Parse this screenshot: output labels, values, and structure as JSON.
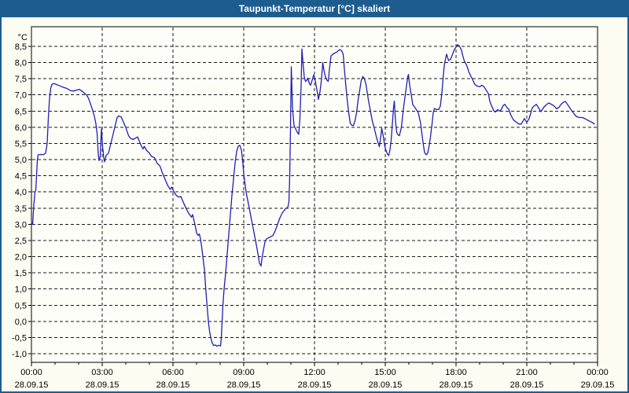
{
  "window": {
    "title": "Taupunkt-Temperatur [°C] skaliert"
  },
  "colors": {
    "titlebar_background": "#1d5c8f",
    "titlebar_text": "#ffffff",
    "window_frame": "#1d5c8f",
    "page_background": "#fcfcf2",
    "plot_background": "#fefef8",
    "grid": "#1a1a1a",
    "axis": "#000000",
    "series_line": "#1f1fb4"
  },
  "chart_data": {
    "type": "line",
    "title": "Taupunkt-Temperatur [°C] skaliert",
    "grid": "dashed",
    "legend": "none",
    "y_axis": {
      "unit": "°C",
      "max": 8.5,
      "min": -1.0,
      "step": 0.5,
      "tick_labels": [
        "8,5",
        "8,0",
        "7,5",
        "7,0",
        "6,5",
        "6,0",
        "5,5",
        "5,0",
        "4,5",
        "4,0",
        "3,5",
        "3,0",
        "2,5",
        "2,0",
        "1,5",
        "1,0",
        "0,5",
        "0,0",
        "-0,5",
        "-1,0"
      ]
    },
    "x_axis": {
      "range_hours": 24,
      "major_tick_interval_hours": 3,
      "minor_tick_interval_hours": 1,
      "ticks": [
        {
          "time": "00:00",
          "date": "28.09.15"
        },
        {
          "time": "03:00",
          "date": "28.09.15"
        },
        {
          "time": "06:00",
          "date": "28.09.15"
        },
        {
          "time": "09:00",
          "date": "28.09.15"
        },
        {
          "time": "12:00",
          "date": "28.09.15"
        },
        {
          "time": "15:00",
          "date": "28.09.15"
        },
        {
          "time": "18:00",
          "date": "28.09.15"
        },
        {
          "time": "21:00",
          "date": "28.09.15"
        },
        {
          "time": "00:00",
          "date": "29.09.15"
        }
      ]
    },
    "series": [
      {
        "name": "Taupunkt-Temperatur",
        "color": "#1f1fb4",
        "x_unit": "minutes_since_00:00",
        "y_unit": "°C",
        "points": [
          [
            0,
            3.05
          ],
          [
            3,
            3.0
          ],
          [
            6,
            3.6
          ],
          [
            9,
            4.0
          ],
          [
            11,
            4.05
          ],
          [
            13,
            4.5
          ],
          [
            15,
            5.0
          ],
          [
            17,
            5.15
          ],
          [
            24,
            5.16
          ],
          [
            30,
            5.15
          ],
          [
            36,
            5.2
          ],
          [
            40,
            5.5
          ],
          [
            43,
            6.3
          ],
          [
            46,
            6.9
          ],
          [
            49,
            7.2
          ],
          [
            52,
            7.33
          ],
          [
            58,
            7.35
          ],
          [
            64,
            7.32
          ],
          [
            72,
            7.28
          ],
          [
            80,
            7.24
          ],
          [
            90,
            7.2
          ],
          [
            100,
            7.13
          ],
          [
            108,
            7.12
          ],
          [
            115,
            7.15
          ],
          [
            122,
            7.17
          ],
          [
            128,
            7.12
          ],
          [
            133,
            7.07
          ],
          [
            140,
            7.0
          ],
          [
            145,
            6.9
          ],
          [
            150,
            6.73
          ],
          [
            155,
            6.55
          ],
          [
            160,
            6.34
          ],
          [
            164,
            6.1
          ],
          [
            167,
            5.8
          ],
          [
            170,
            5.16
          ],
          [
            172,
            4.97
          ],
          [
            175,
            5.1
          ],
          [
            178,
            5.95
          ],
          [
            181,
            5.4
          ],
          [
            184,
            5.05
          ],
          [
            186,
            4.93
          ],
          [
            190,
            5.13
          ],
          [
            196,
            5.2
          ],
          [
            202,
            5.5
          ],
          [
            208,
            5.8
          ],
          [
            214,
            6.1
          ],
          [
            218,
            6.3
          ],
          [
            222,
            6.35
          ],
          [
            228,
            6.32
          ],
          [
            233,
            6.19
          ],
          [
            240,
            5.99
          ],
          [
            247,
            5.74
          ],
          [
            252,
            5.66
          ],
          [
            258,
            5.62
          ],
          [
            264,
            5.66
          ],
          [
            270,
            5.7
          ],
          [
            274,
            5.58
          ],
          [
            280,
            5.41
          ],
          [
            284,
            5.33
          ],
          [
            287,
            5.41
          ],
          [
            293,
            5.28
          ],
          [
            300,
            5.2
          ],
          [
            305,
            5.1
          ],
          [
            313,
            5.06
          ],
          [
            320,
            4.88
          ],
          [
            327,
            4.8
          ],
          [
            333,
            4.59
          ],
          [
            340,
            4.39
          ],
          [
            347,
            4.19
          ],
          [
            353,
            4.08
          ],
          [
            357,
            4.15
          ],
          [
            363,
            3.99
          ],
          [
            368,
            3.9
          ],
          [
            374,
            3.84
          ],
          [
            380,
            3.86
          ],
          [
            387,
            3.66
          ],
          [
            393,
            3.5
          ],
          [
            400,
            3.34
          ],
          [
            407,
            3.22
          ],
          [
            410,
            3.3
          ],
          [
            413,
            3.14
          ],
          [
            417,
            2.93
          ],
          [
            420,
            2.73
          ],
          [
            424,
            2.66
          ],
          [
            427,
            2.7
          ],
          [
            430,
            2.55
          ],
          [
            433,
            2.3
          ],
          [
            436,
            2.0
          ],
          [
            440,
            1.6
          ],
          [
            444,
            0.9
          ],
          [
            447,
            0.45
          ],
          [
            450,
            0.0
          ],
          [
            453,
            -0.3
          ],
          [
            456,
            -0.5
          ],
          [
            460,
            -0.68
          ],
          [
            464,
            -0.75
          ],
          [
            468,
            -0.73
          ],
          [
            472,
            -0.77
          ],
          [
            476,
            -0.74
          ],
          [
            481,
            -0.76
          ],
          [
            483,
            -0.5
          ],
          [
            485,
            0.0
          ],
          [
            487,
            0.5
          ],
          [
            490,
            1.0
          ],
          [
            494,
            1.5
          ],
          [
            498,
            2.1
          ],
          [
            502,
            2.7
          ],
          [
            506,
            3.3
          ],
          [
            510,
            3.9
          ],
          [
            514,
            4.4
          ],
          [
            518,
            4.9
          ],
          [
            522,
            5.25
          ],
          [
            526,
            5.42
          ],
          [
            530,
            5.44
          ],
          [
            534,
            5.3
          ],
          [
            537,
            5.0
          ],
          [
            540,
            4.55
          ],
          [
            546,
            4.0
          ],
          [
            554,
            3.5
          ],
          [
            562,
            3.0
          ],
          [
            570,
            2.5
          ],
          [
            576,
            2.1
          ],
          [
            580,
            1.8
          ],
          [
            584,
            1.71
          ],
          [
            587,
            2.0
          ],
          [
            590,
            2.2
          ],
          [
            594,
            2.45
          ],
          [
            598,
            2.55
          ],
          [
            606,
            2.6
          ],
          [
            614,
            2.65
          ],
          [
            620,
            2.8
          ],
          [
            626,
            3.0
          ],
          [
            632,
            3.2
          ],
          [
            638,
            3.35
          ],
          [
            646,
            3.48
          ],
          [
            652,
            3.52
          ],
          [
            655,
            3.7
          ],
          [
            657,
            4.5
          ],
          [
            659,
            6.0
          ],
          [
            661,
            7.87
          ],
          [
            664,
            6.6
          ],
          [
            668,
            6.05
          ],
          [
            672,
            5.95
          ],
          [
            676,
            5.85
          ],
          [
            680,
            5.78
          ],
          [
            683,
            6.3
          ],
          [
            686,
            7.3
          ],
          [
            688,
            8.42
          ],
          [
            691,
            7.95
          ],
          [
            694,
            7.55
          ],
          [
            697,
            7.42
          ],
          [
            700,
            7.45
          ],
          [
            703,
            7.52
          ],
          [
            707,
            7.35
          ],
          [
            710,
            7.3
          ],
          [
            714,
            7.45
          ],
          [
            718,
            7.62
          ],
          [
            721,
            7.5
          ],
          [
            724,
            7.3
          ],
          [
            727,
            7.1
          ],
          [
            730,
            6.86
          ],
          [
            734,
            7.1
          ],
          [
            738,
            7.5
          ],
          [
            741,
            8.0
          ],
          [
            745,
            7.7
          ],
          [
            748,
            7.55
          ],
          [
            752,
            7.45
          ],
          [
            755,
            7.42
          ],
          [
            758,
            7.8
          ],
          [
            762,
            8.2
          ],
          [
            768,
            8.27
          ],
          [
            776,
            8.32
          ],
          [
            784,
            8.4
          ],
          [
            789,
            8.37
          ],
          [
            793,
            8.25
          ],
          [
            796,
            7.8
          ],
          [
            800,
            7.25
          ],
          [
            804,
            6.76
          ],
          [
            807,
            6.45
          ],
          [
            811,
            6.12
          ],
          [
            815,
            6.06
          ],
          [
            819,
            6.05
          ],
          [
            823,
            6.2
          ],
          [
            827,
            6.45
          ],
          [
            831,
            6.85
          ],
          [
            835,
            7.15
          ],
          [
            839,
            7.45
          ],
          [
            843,
            7.57
          ],
          [
            847,
            7.5
          ],
          [
            851,
            7.32
          ],
          [
            857,
            6.85
          ],
          [
            863,
            6.45
          ],
          [
            867,
            6.2
          ],
          [
            871,
            6.02
          ],
          [
            877,
            5.72
          ],
          [
            881,
            5.55
          ],
          [
            885,
            5.4
          ],
          [
            889,
            5.75
          ],
          [
            891,
            5.97
          ],
          [
            895,
            5.72
          ],
          [
            899,
            5.4
          ],
          [
            902,
            5.28
          ],
          [
            906,
            5.16
          ],
          [
            909,
            5.13
          ],
          [
            912,
            5.3
          ],
          [
            915,
            5.6
          ],
          [
            918,
            6.1
          ],
          [
            921,
            6.6
          ],
          [
            923,
            6.81
          ],
          [
            926,
            6.2
          ],
          [
            929,
            5.85
          ],
          [
            932,
            5.77
          ],
          [
            936,
            5.74
          ],
          [
            941,
            6.0
          ],
          [
            947,
            6.65
          ],
          [
            952,
            7.1
          ],
          [
            957,
            7.55
          ],
          [
            959,
            7.63
          ],
          [
            962,
            7.3
          ],
          [
            965,
            7.08
          ],
          [
            970,
            6.7
          ],
          [
            976,
            6.6
          ],
          [
            984,
            6.45
          ],
          [
            990,
            6.12
          ],
          [
            994,
            5.72
          ],
          [
            997,
            5.45
          ],
          [
            1000,
            5.22
          ],
          [
            1004,
            5.15
          ],
          [
            1008,
            5.2
          ],
          [
            1012,
            5.45
          ],
          [
            1015,
            5.7
          ],
          [
            1019,
            6.1
          ],
          [
            1022,
            6.45
          ],
          [
            1025,
            6.58
          ],
          [
            1030,
            6.55
          ],
          [
            1036,
            6.55
          ],
          [
            1040,
            6.65
          ],
          [
            1044,
            7.05
          ],
          [
            1047,
            7.5
          ],
          [
            1050,
            7.9
          ],
          [
            1053,
            8.1
          ],
          [
            1056,
            8.26
          ],
          [
            1061,
            8.06
          ],
          [
            1066,
            8.1
          ],
          [
            1071,
            8.25
          ],
          [
            1075,
            8.38
          ],
          [
            1080,
            8.48
          ],
          [
            1084,
            8.55
          ],
          [
            1089,
            8.5
          ],
          [
            1094,
            8.38
          ],
          [
            1097,
            8.22
          ],
          [
            1101,
            8.05
          ],
          [
            1107,
            7.92
          ],
          [
            1113,
            7.7
          ],
          [
            1118,
            7.57
          ],
          [
            1122,
            7.48
          ],
          [
            1128,
            7.32
          ],
          [
            1134,
            7.27
          ],
          [
            1140,
            7.25
          ],
          [
            1146,
            7.3
          ],
          [
            1152,
            7.24
          ],
          [
            1156,
            7.16
          ],
          [
            1162,
            7.05
          ],
          [
            1166,
            6.8
          ],
          [
            1172,
            6.62
          ],
          [
            1176,
            6.51
          ],
          [
            1180,
            6.47
          ],
          [
            1186,
            6.55
          ],
          [
            1190,
            6.5
          ],
          [
            1194,
            6.53
          ],
          [
            1200,
            6.67
          ],
          [
            1204,
            6.71
          ],
          [
            1210,
            6.6
          ],
          [
            1214,
            6.56
          ],
          [
            1220,
            6.36
          ],
          [
            1226,
            6.23
          ],
          [
            1234,
            6.15
          ],
          [
            1240,
            6.1
          ],
          [
            1246,
            6.1
          ],
          [
            1254,
            6.27
          ],
          [
            1260,
            6.15
          ],
          [
            1266,
            6.27
          ],
          [
            1274,
            6.6
          ],
          [
            1280,
            6.67
          ],
          [
            1284,
            6.71
          ],
          [
            1290,
            6.6
          ],
          [
            1296,
            6.48
          ],
          [
            1304,
            6.63
          ],
          [
            1310,
            6.7
          ],
          [
            1316,
            6.75
          ],
          [
            1324,
            6.7
          ],
          [
            1330,
            6.65
          ],
          [
            1336,
            6.57
          ],
          [
            1342,
            6.62
          ],
          [
            1348,
            6.72
          ],
          [
            1354,
            6.78
          ],
          [
            1358,
            6.8
          ],
          [
            1364,
            6.7
          ],
          [
            1372,
            6.55
          ],
          [
            1378,
            6.45
          ],
          [
            1386,
            6.33
          ],
          [
            1394,
            6.3
          ],
          [
            1402,
            6.3
          ],
          [
            1410,
            6.25
          ],
          [
            1418,
            6.2
          ],
          [
            1426,
            6.15
          ],
          [
            1432,
            6.1
          ]
        ]
      }
    ]
  }
}
